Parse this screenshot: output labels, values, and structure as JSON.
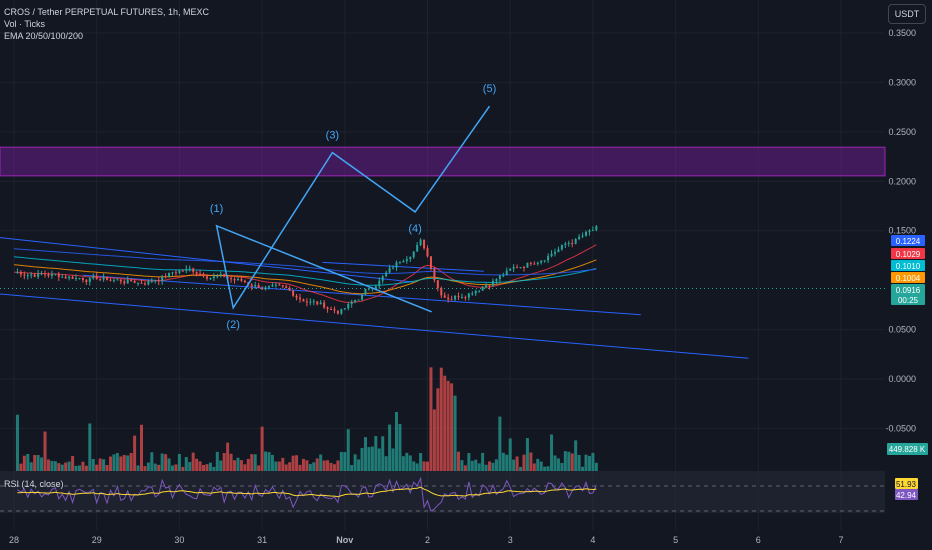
{
  "chart_data": {
    "type": "candlestick",
    "title": "CROS / Tether PERPETUAL FUTURES, 1h, MEXC",
    "indicators": [
      "Vol · Ticks",
      "EMA 20/50/100/200"
    ],
    "currency": "USDT",
    "x_tick_labels": [
      "28",
      "29",
      "30",
      "31",
      "Nov",
      "2",
      "3",
      "4",
      "5",
      "6",
      "7"
    ],
    "y_tick_labels": [
      "0.3500",
      "0.3000",
      "0.2500",
      "0.2000",
      "0.1500",
      "0.0500",
      "0.0000",
      "-0.0500"
    ],
    "ylim": [
      -0.06,
      0.36
    ],
    "price_badges": [
      {
        "text": "0.1224",
        "color": "#2962ff"
      },
      {
        "text": "0.1029",
        "color": "#f23645"
      },
      {
        "text": "0.1010",
        "color": "#00bcd4"
      },
      {
        "text": "0.1004",
        "color": "#ff9800"
      },
      {
        "text": "0.0916",
        "color": "#26a69a"
      },
      {
        "text": "00:25",
        "color": "#26a69a"
      }
    ],
    "volume_badge": "449.828 K",
    "resistance_zone": [
      0.2055,
      0.2345
    ],
    "elliott_wave": {
      "labels": [
        "(1)",
        "(2)",
        "(3)",
        "(4)",
        "(5)"
      ],
      "points": [
        {
          "day": 2.45,
          "price": 0.155
        },
        {
          "day": 2.65,
          "price": 0.072
        },
        {
          "day": 3.85,
          "price": 0.229
        },
        {
          "day": 4.85,
          "price": 0.169
        },
        {
          "day": 5.75,
          "price": 0.276
        }
      ]
    },
    "candles": [],
    "volume": [],
    "rsi": {
      "label": "RSI (14, close)",
      "value_labels": [
        "51.93",
        "42.94"
      ]
    }
  }
}
